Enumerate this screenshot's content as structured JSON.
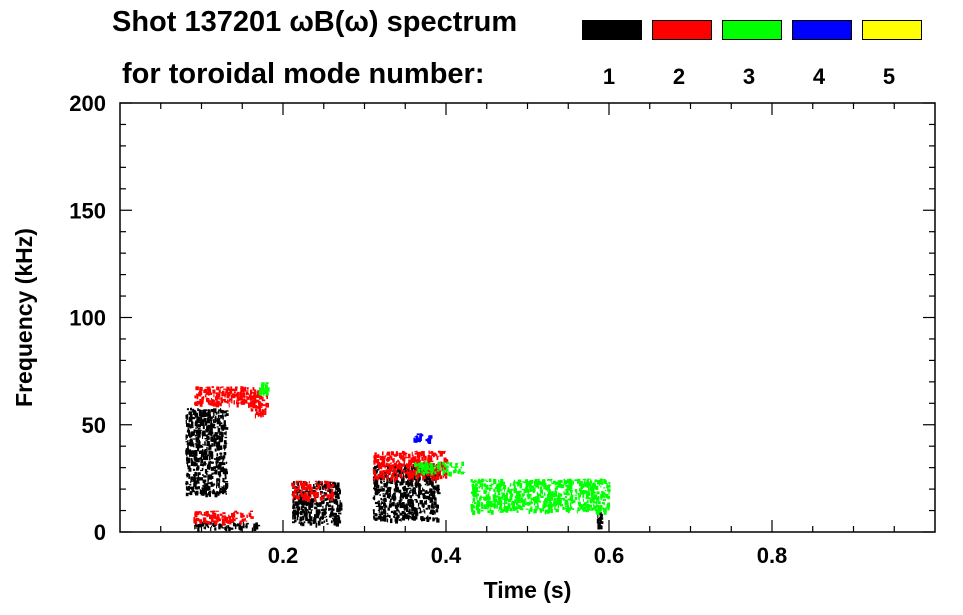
{
  "chart_data": {
    "type": "heatmap",
    "title_line1": "Shot 137201 ωB(ω) spectrum",
    "title_line2": "for toroidal mode number:",
    "xlabel": "Time (s)",
    "ylabel": "Frequency (kHz)",
    "xlim": [
      0.0,
      1.0
    ],
    "ylim": [
      0,
      200
    ],
    "x_ticks": [
      0.2,
      0.4,
      0.6,
      0.8
    ],
    "x_tick_labels": [
      "0.2",
      "0.4",
      "0.6",
      "0.8"
    ],
    "y_ticks": [
      0,
      50,
      100,
      150,
      200
    ],
    "y_tick_labels": [
      "0",
      "50",
      "100",
      "150",
      "200"
    ],
    "legend": [
      {
        "label": "1",
        "color": "#000000"
      },
      {
        "label": "2",
        "color": "#ff0000"
      },
      {
        "label": "3",
        "color": "#00ff00"
      },
      {
        "label": "4",
        "color": "#0000ff"
      },
      {
        "label": "5",
        "color": "#ffff00"
      }
    ],
    "regions": [
      {
        "mode": 1,
        "t": [
          0.08,
          0.13
        ],
        "f": [
          18,
          58
        ]
      },
      {
        "mode": 1,
        "t": [
          0.09,
          0.17
        ],
        "f": [
          2,
          5
        ]
      },
      {
        "mode": 1,
        "t": [
          0.21,
          0.27
        ],
        "f": [
          4,
          24
        ]
      },
      {
        "mode": 1,
        "t": [
          0.31,
          0.39
        ],
        "f": [
          6,
          32
        ]
      },
      {
        "mode": 1,
        "t": [
          0.585,
          0.59
        ],
        "f": [
          2,
          10
        ]
      },
      {
        "mode": 2,
        "t": [
          0.09,
          0.17
        ],
        "f": [
          60,
          68
        ]
      },
      {
        "mode": 2,
        "t": [
          0.16,
          0.18
        ],
        "f": [
          55,
          65
        ]
      },
      {
        "mode": 2,
        "t": [
          0.21,
          0.26
        ],
        "f": [
          16,
          24
        ]
      },
      {
        "mode": 2,
        "t": [
          0.31,
          0.4
        ],
        "f": [
          25,
          38
        ]
      },
      {
        "mode": 2,
        "t": [
          0.09,
          0.16
        ],
        "f": [
          5,
          10
        ]
      },
      {
        "mode": 3,
        "t": [
          0.17,
          0.18
        ],
        "f": [
          65,
          70
        ]
      },
      {
        "mode": 3,
        "t": [
          0.36,
          0.42
        ],
        "f": [
          28,
          33
        ]
      },
      {
        "mode": 3,
        "t": [
          0.43,
          0.6
        ],
        "f": [
          10,
          25
        ]
      },
      {
        "mode": 4,
        "t": [
          0.36,
          0.38
        ],
        "f": [
          43,
          46
        ]
      }
    ]
  }
}
